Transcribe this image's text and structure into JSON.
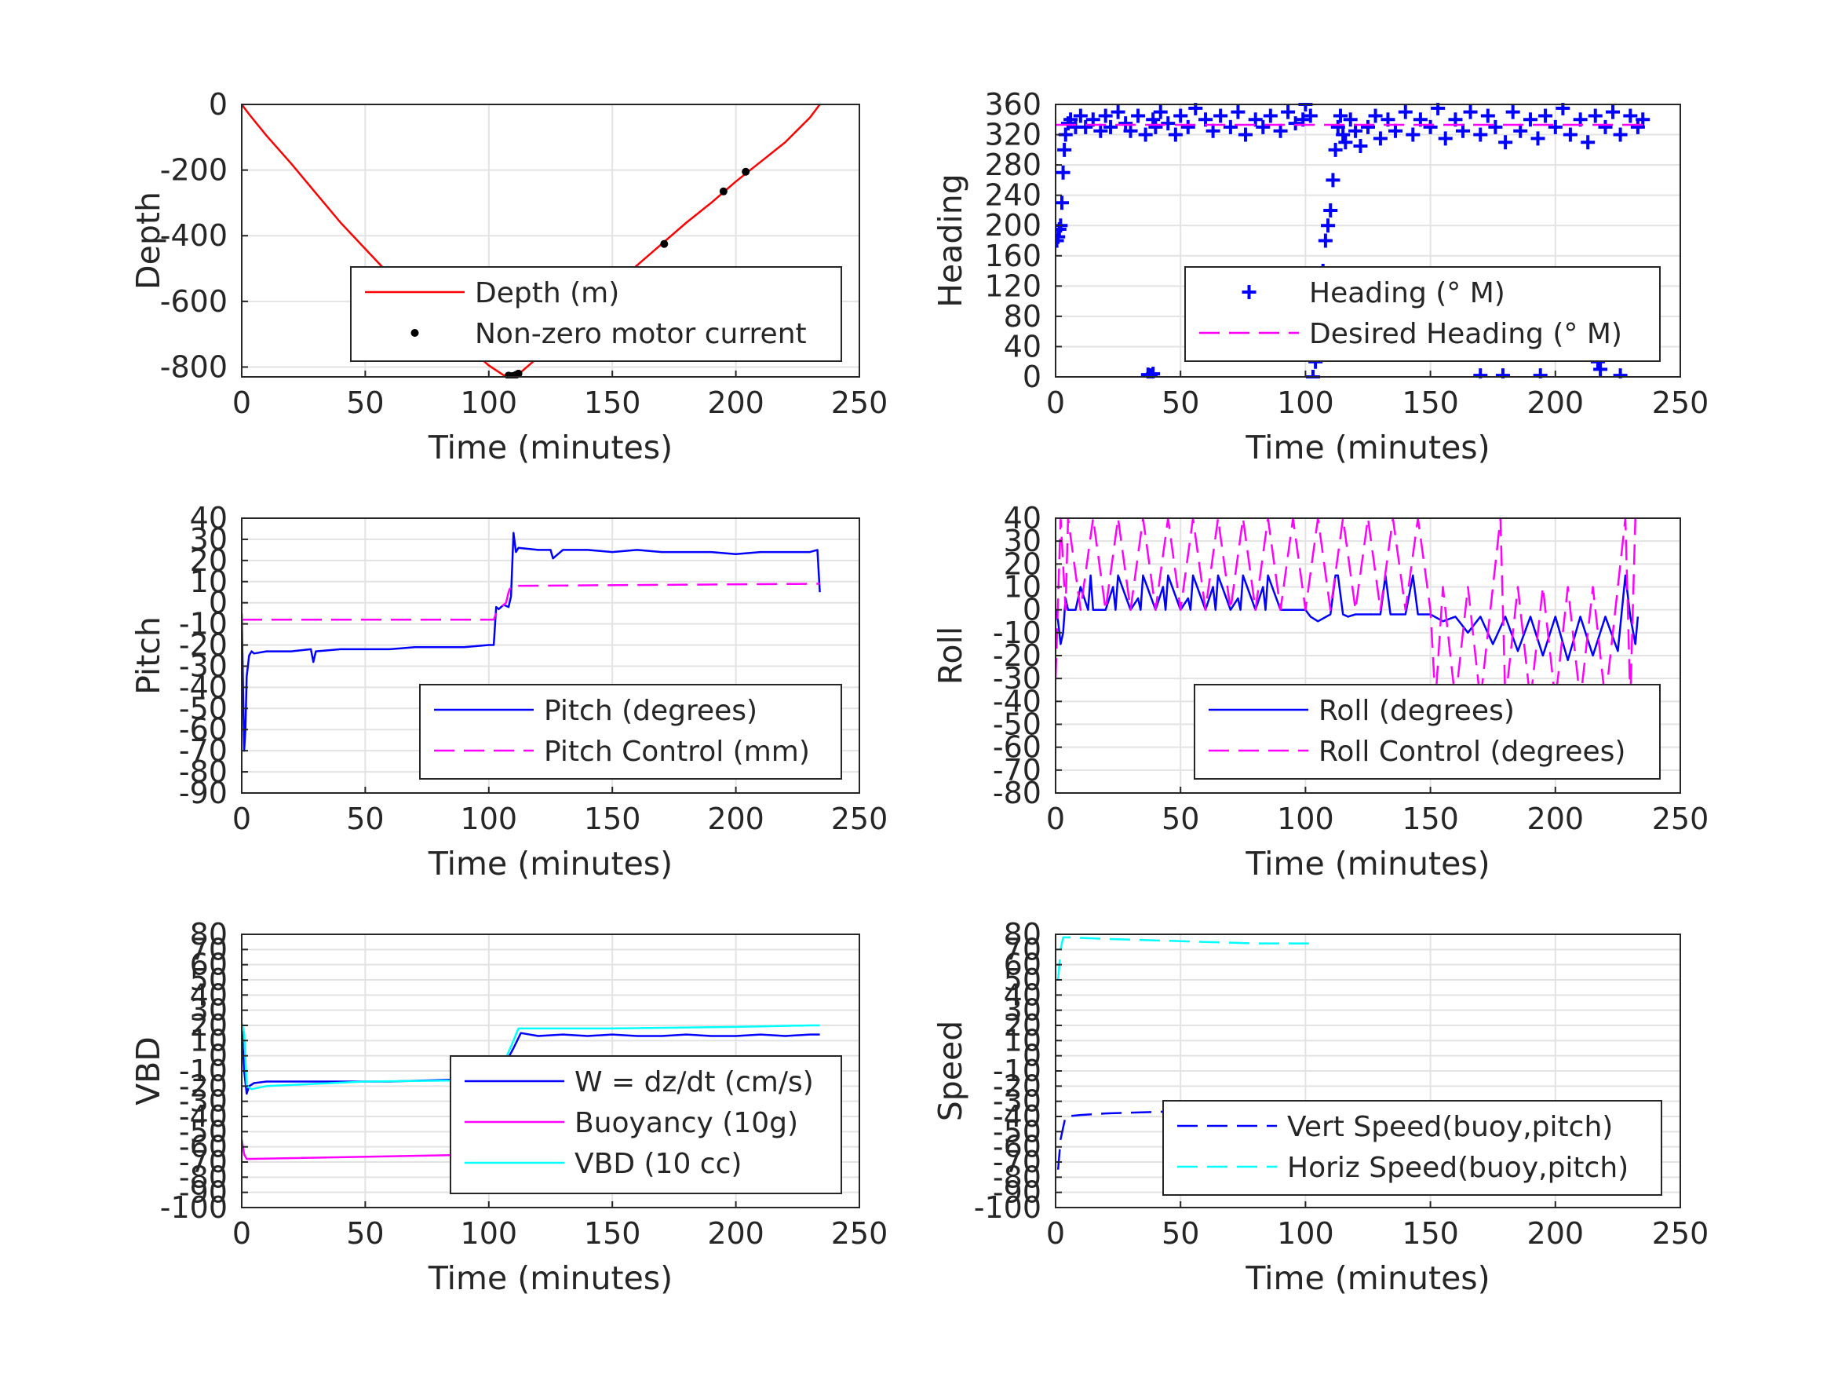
{
  "figure": {
    "background": "#ffffff",
    "grid_color": "#e3e3e3",
    "axis_color": "#262626"
  },
  "chart_data": [
    {
      "id": "depth",
      "type": "line",
      "xlabel": "Time (minutes)",
      "ylabel": "Depth",
      "xlim": [
        0,
        250
      ],
      "ylim": [
        -830,
        0
      ],
      "xticks": [
        0,
        50,
        100,
        150,
        200,
        250
      ],
      "yticks": [
        0,
        -200,
        -400,
        -600,
        -800
      ],
      "grid": true,
      "legend": "lower-right",
      "series": [
        {
          "name": "Depth (m)",
          "kind": "line",
          "color": "#ff0000",
          "style": "solid",
          "x": [
            0,
            3,
            10,
            20,
            30,
            40,
            50,
            60,
            70,
            80,
            90,
            100,
            106,
            109,
            112,
            120,
            130,
            140,
            150,
            160,
            170,
            180,
            190,
            200,
            205,
            210,
            220,
            230,
            234
          ],
          "y": [
            0,
            -30,
            -95,
            -180,
            -270,
            -360,
            -440,
            -520,
            -590,
            -660,
            -730,
            -795,
            -825,
            -828,
            -822,
            -770,
            -700,
            -630,
            -560,
            -490,
            -425,
            -360,
            -300,
            -235,
            -205,
            -175,
            -115,
            -40,
            0
          ]
        },
        {
          "name": "Non-zero motor current",
          "kind": "marker",
          "marker": "dot",
          "color": "#000000",
          "x": [
            108,
            109,
            110,
            111,
            112,
            171,
            195,
            204
          ],
          "y": [
            -826,
            -828,
            -827,
            -824,
            -820,
            -425,
            -265,
            -205
          ]
        }
      ]
    },
    {
      "id": "heading",
      "type": "scatter",
      "xlabel": "Time (minutes)",
      "ylabel": "Heading",
      "xlim": [
        0,
        250
      ],
      "ylim": [
        0,
        360
      ],
      "xticks": [
        0,
        50,
        100,
        150,
        200,
        250
      ],
      "yticks": [
        0,
        40,
        80,
        120,
        160,
        200,
        240,
        280,
        320,
        360
      ],
      "grid": true,
      "legend": "lower-right",
      "series": [
        {
          "name": "Heading (° M)",
          "kind": "marker",
          "marker": "plus",
          "color": "#0000ff",
          "x": [
            0.5,
            1,
            1.5,
            2,
            2.5,
            3,
            3.5,
            4,
            5,
            6,
            8,
            10,
            12,
            15,
            18,
            20,
            22,
            25,
            28,
            30,
            33,
            36,
            39,
            40,
            42,
            45,
            48,
            50,
            53,
            56,
            60,
            63,
            66,
            70,
            73,
            76,
            80,
            83,
            86,
            90,
            93,
            96,
            99,
            100,
            102,
            103,
            104,
            105,
            106,
            107,
            108,
            109,
            110,
            111,
            112,
            113,
            114,
            115,
            116,
            118,
            120,
            122,
            125,
            128,
            130,
            133,
            136,
            140,
            143,
            146,
            150,
            153,
            156,
            160,
            163,
            166,
            170,
            173,
            176,
            180,
            183,
            186,
            190,
            193,
            196,
            200,
            203,
            206,
            210,
            213,
            216,
            217,
            218,
            220,
            223,
            226,
            230,
            233,
            235,
            37,
            38,
            39,
            170,
            179,
            194,
            226
          ],
          "y": [
            180,
            185,
            195,
            200,
            230,
            270,
            300,
            320,
            335,
            340,
            330,
            345,
            330,
            340,
            325,
            345,
            330,
            350,
            335,
            325,
            345,
            320,
            340,
            330,
            350,
            335,
            320,
            345,
            330,
            355,
            340,
            325,
            345,
            330,
            350,
            320,
            340,
            330,
            345,
            325,
            350,
            335,
            340,
            360,
            345,
            0,
            20,
            60,
            100,
            140,
            180,
            200,
            220,
            260,
            300,
            330,
            345,
            320,
            310,
            340,
            325,
            305,
            330,
            345,
            315,
            340,
            325,
            350,
            320,
            340,
            330,
            355,
            315,
            340,
            325,
            350,
            320,
            345,
            330,
            310,
            350,
            325,
            340,
            315,
            345,
            330,
            355,
            320,
            340,
            310,
            345,
            20,
            10,
            330,
            350,
            320,
            345,
            330,
            340,
            3,
            2,
            4,
            2,
            2,
            2,
            2
          ]
        },
        {
          "name": "Desired Heading (° M)",
          "kind": "line",
          "color": "#ff00ff",
          "style": "dashed",
          "x": [
            0,
            235
          ],
          "y": [
            333,
            333
          ]
        }
      ]
    },
    {
      "id": "pitch",
      "type": "line",
      "xlabel": "Time (minutes)",
      "ylabel": "Pitch",
      "xlim": [
        0,
        250
      ],
      "ylim": [
        -90,
        40
      ],
      "xticks": [
        0,
        50,
        100,
        150,
        200,
        250
      ],
      "yticks": [
        40,
        30,
        20,
        10,
        0,
        -10,
        -20,
        -30,
        -40,
        -50,
        -60,
        -70,
        -80,
        -90
      ],
      "grid": true,
      "legend": "lower-right",
      "series": [
        {
          "name": "Pitch (degrees)",
          "kind": "line",
          "color": "#0000ff",
          "style": "solid",
          "x": [
            0,
            1,
            1.5,
            2,
            3,
            4,
            5,
            10,
            20,
            28,
            29,
            30,
            40,
            50,
            60,
            70,
            80,
            90,
            100,
            102,
            103,
            104,
            106,
            108,
            109,
            110,
            111,
            112,
            120,
            125,
            126,
            130,
            140,
            150,
            160,
            170,
            180,
            190,
            200,
            210,
            220,
            230,
            233,
            234
          ],
          "y": [
            -5,
            -70,
            -60,
            -35,
            -25,
            -23,
            -24,
            -23,
            -23,
            -22,
            -28,
            -23,
            -22,
            -22,
            -22,
            -21,
            -21,
            -21,
            -20,
            -20,
            -2,
            -3,
            -1,
            -2,
            3,
            33,
            24,
            26,
            25,
            25,
            21,
            25,
            25,
            24,
            25,
            24,
            24,
            24,
            23,
            24,
            24,
            24,
            25,
            5
          ]
        },
        {
          "name": "Pitch Control (mm)",
          "kind": "line",
          "color": "#ff00ff",
          "style": "dashed",
          "x": [
            0,
            102,
            103,
            104,
            105,
            106,
            107,
            108,
            109,
            234
          ],
          "y": [
            -8,
            -8,
            -5,
            -3,
            -2,
            -1,
            0,
            5,
            8,
            9
          ]
        }
      ]
    },
    {
      "id": "roll",
      "type": "line",
      "xlabel": "Time (minutes)",
      "ylabel": "Roll",
      "xlim": [
        0,
        250
      ],
      "ylim": [
        -80,
        40
      ],
      "xticks": [
        0,
        50,
        100,
        150,
        200,
        250
      ],
      "yticks": [
        40,
        30,
        20,
        10,
        0,
        -10,
        -20,
        -30,
        -40,
        -50,
        -60,
        -70,
        -80
      ],
      "grid": true,
      "legend": "lower-right",
      "series": [
        {
          "name": "Roll (degrees)",
          "kind": "line",
          "color": "#0000ff",
          "style": "solid",
          "x": [
            0,
            1,
            2,
            3,
            4,
            5,
            8,
            10,
            13,
            14,
            15,
            20,
            23,
            24,
            25,
            30,
            33,
            34,
            35,
            40,
            43,
            44,
            45,
            50,
            53,
            54,
            55,
            60,
            63,
            64,
            65,
            70,
            73,
            74,
            75,
            80,
            83,
            84,
            85,
            90,
            100,
            102,
            105,
            110,
            112,
            113,
            115,
            117,
            120,
            130,
            132,
            134,
            140,
            143,
            145,
            150,
            155,
            160,
            165,
            170,
            175,
            180,
            185,
            190,
            195,
            200,
            205,
            210,
            215,
            220,
            225,
            228,
            230,
            232,
            233
          ],
          "y": [
            0,
            -5,
            -15,
            -10,
            5,
            0,
            0,
            10,
            0,
            15,
            0,
            0,
            10,
            0,
            15,
            0,
            5,
            0,
            15,
            0,
            10,
            0,
            15,
            0,
            5,
            0,
            15,
            0,
            10,
            0,
            15,
            0,
            5,
            0,
            15,
            0,
            10,
            0,
            15,
            0,
            0,
            -3,
            -5,
            -2,
            15,
            15,
            -2,
            -3,
            -2,
            -2,
            15,
            -2,
            -2,
            15,
            -2,
            -2,
            -5,
            -3,
            -10,
            -3,
            -15,
            -3,
            -18,
            -3,
            -20,
            -3,
            -22,
            -3,
            -20,
            -3,
            -18,
            15,
            -3,
            -15,
            -3
          ]
        },
        {
          "name": "Roll Control (degrees)",
          "kind": "line",
          "color": "#ff00ff",
          "style": "dashed",
          "x": [
            0,
            2,
            4,
            5,
            10,
            15,
            20,
            25,
            30,
            35,
            40,
            45,
            50,
            55,
            60,
            65,
            70,
            75,
            80,
            85,
            90,
            95,
            100,
            105,
            110,
            115,
            120,
            125,
            130,
            135,
            140,
            145,
            150,
            152,
            155,
            160,
            165,
            170,
            175,
            178,
            180,
            185,
            190,
            195,
            200,
            205,
            210,
            215,
            220,
            225,
            228,
            230,
            232
          ],
          "y": [
            -30,
            40,
            0,
            40,
            0,
            40,
            0,
            40,
            0,
            40,
            0,
            40,
            0,
            40,
            0,
            40,
            0,
            40,
            0,
            40,
            0,
            40,
            0,
            40,
            0,
            40,
            0,
            40,
            0,
            40,
            0,
            40,
            0,
            -40,
            10,
            -40,
            10,
            -40,
            10,
            40,
            -40,
            10,
            -40,
            10,
            -40,
            10,
            -40,
            10,
            -40,
            10,
            40,
            -40,
            40
          ]
        }
      ]
    },
    {
      "id": "vbd",
      "type": "line",
      "xlabel": "Time (minutes)",
      "ylabel": "VBD",
      "xlim": [
        0,
        250
      ],
      "ylim": [
        -100,
        80
      ],
      "xticks": [
        0,
        50,
        100,
        150,
        200,
        250
      ],
      "yticks": [
        80,
        70,
        60,
        50,
        40,
        30,
        20,
        10,
        0,
        -10,
        -20,
        -30,
        -40,
        -50,
        -60,
        -70,
        -80,
        -90,
        -100
      ],
      "grid": true,
      "legend": "lower-right",
      "series": [
        {
          "name": "W = dz/dt (cm/s)",
          "kind": "line",
          "color": "#0000ff",
          "style": "solid",
          "x": [
            0,
            1,
            2,
            3,
            5,
            10,
            20,
            40,
            60,
            80,
            100,
            103,
            105,
            110,
            113,
            120,
            130,
            140,
            150,
            160,
            170,
            180,
            190,
            200,
            210,
            220,
            230,
            234
          ],
          "y": [
            20,
            -10,
            -25,
            -20,
            -18,
            -17,
            -17,
            -17,
            -17,
            -16,
            -15,
            -15,
            -10,
            5,
            15,
            13,
            14,
            13,
            14,
            13,
            13,
            14,
            13,
            13,
            14,
            13,
            14,
            14
          ]
        },
        {
          "name": "Buoyancy (10g)",
          "kind": "line",
          "color": "#ff00ff",
          "style": "solid",
          "x": [
            0,
            1,
            2,
            102
          ],
          "y": [
            -55,
            -65,
            -68,
            -65
          ]
        },
        {
          "name": "VBD (10 cc)",
          "kind": "line",
          "color": "#00ffff",
          "style": "solid",
          "x": [
            0,
            1,
            2,
            4,
            10,
            50,
            100,
            103,
            106,
            110,
            112,
            150,
            200,
            230,
            234
          ],
          "y": [
            22,
            15,
            -20,
            -22,
            -20,
            -17,
            -16,
            -12,
            -5,
            10,
            18,
            18,
            19,
            20,
            20
          ]
        }
      ]
    },
    {
      "id": "speed",
      "type": "line",
      "xlabel": "Time (minutes)",
      "ylabel": "Speed",
      "xlim": [
        0,
        250
      ],
      "ylim": [
        -100,
        80
      ],
      "xticks": [
        0,
        50,
        100,
        150,
        200,
        250
      ],
      "yticks": [
        80,
        70,
        60,
        50,
        40,
        30,
        20,
        10,
        0,
        -10,
        -20,
        -30,
        -40,
        -50,
        -60,
        -70,
        -80,
        -90,
        -100
      ],
      "grid": true,
      "legend": "lower-right",
      "series": [
        {
          "name": "Vert Speed(buoy,pitch)",
          "kind": "line",
          "color": "#0000ff",
          "style": "dashed",
          "x": [
            1,
            2,
            4,
            10,
            20,
            40,
            60,
            80,
            102
          ],
          "y": [
            -75,
            -55,
            -40,
            -39,
            -38,
            -37,
            -36,
            -35,
            -35
          ]
        },
        {
          "name": "Horiz Speed(buoy,pitch)",
          "kind": "line",
          "color": "#00ffff",
          "style": "dashed",
          "x": [
            1,
            2,
            3,
            5,
            20,
            40,
            60,
            80,
            102
          ],
          "y": [
            50,
            70,
            78,
            78,
            77,
            76,
            75,
            74,
            74
          ]
        }
      ]
    }
  ]
}
